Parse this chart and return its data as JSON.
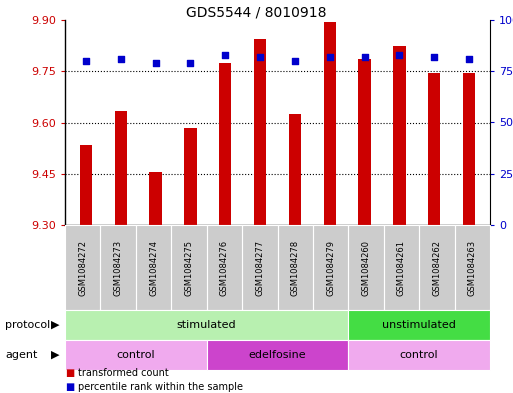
{
  "title": "GDS5544 / 8010918",
  "samples": [
    "GSM1084272",
    "GSM1084273",
    "GSM1084274",
    "GSM1084275",
    "GSM1084276",
    "GSM1084277",
    "GSM1084278",
    "GSM1084279",
    "GSM1084260",
    "GSM1084261",
    "GSM1084262",
    "GSM1084263"
  ],
  "bar_values": [
    9.535,
    9.635,
    9.455,
    9.585,
    9.775,
    9.845,
    9.625,
    9.895,
    9.785,
    9.825,
    9.745,
    9.745
  ],
  "dot_values": [
    80,
    81,
    79,
    79,
    83,
    82,
    80,
    82,
    82,
    83,
    82,
    81
  ],
  "ylim_left": [
    9.3,
    9.9
  ],
  "ylim_right": [
    0,
    100
  ],
  "yticks_left": [
    9.3,
    9.45,
    9.6,
    9.75,
    9.9
  ],
  "yticks_right": [
    0,
    25,
    50,
    75,
    100
  ],
  "bar_color": "#cc0000",
  "dot_color": "#0000cc",
  "bar_bottom": 9.3,
  "grid_values": [
    9.45,
    9.6,
    9.75
  ],
  "protocol_labels": [
    {
      "text": "stimulated",
      "start": 0,
      "end": 7,
      "color": "#b8f0b0"
    },
    {
      "text": "unstimulated",
      "start": 8,
      "end": 11,
      "color": "#44dd44"
    }
  ],
  "agent_labels": [
    {
      "text": "control",
      "start": 0,
      "end": 3,
      "color": "#f0aaee"
    },
    {
      "text": "edelfosine",
      "start": 4,
      "end": 7,
      "color": "#cc44cc"
    },
    {
      "text": "control",
      "start": 8,
      "end": 11,
      "color": "#f0aaee"
    }
  ],
  "legend_items": [
    {
      "label": "transformed count",
      "color": "#cc0000"
    },
    {
      "label": "percentile rank within the sample",
      "color": "#0000cc"
    }
  ],
  "bg_color": "#ffffff",
  "plot_bg_color": "#ffffff",
  "tick_label_color_left": "#cc0000",
  "tick_label_color_right": "#0000cc",
  "bar_width": 0.35,
  "sample_bg_color": "#cccccc",
  "protocol_row_label": "protocol",
  "agent_row_label": "agent"
}
